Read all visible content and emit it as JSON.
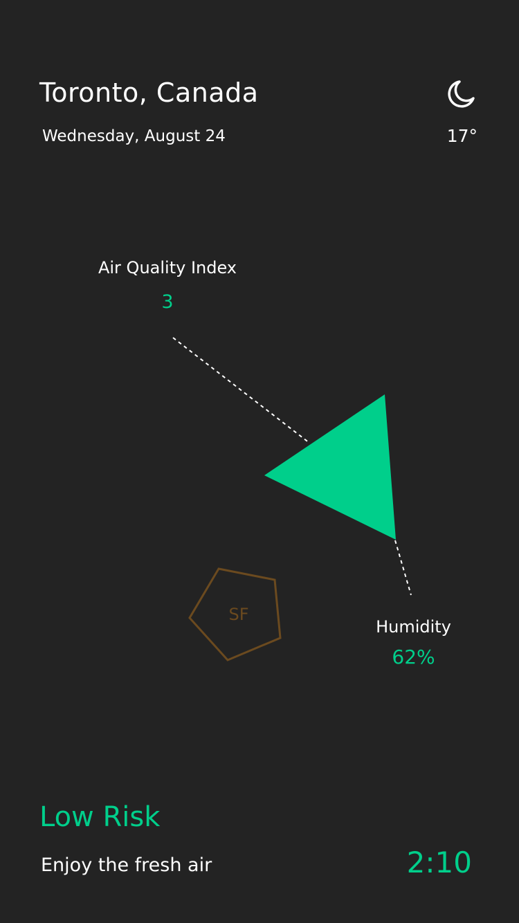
{
  "header": {
    "city": "Toronto, Canada",
    "date": "Wednesday, August 24",
    "temperature": "17°",
    "weather_icon": "moon-icon"
  },
  "metrics": {
    "air_quality": {
      "label": "Air Quality Index",
      "value": "3"
    },
    "humidity": {
      "label": "Humidity",
      "value": "62%"
    }
  },
  "badge": {
    "label": "SF"
  },
  "status": {
    "risk": "Low Risk",
    "message": "Enjoy the fresh air",
    "timer": "2:10"
  },
  "colors": {
    "background": "#232323",
    "accent": "#00cf8b",
    "badge": "#6b4a1f",
    "text": "#ffffff"
  }
}
